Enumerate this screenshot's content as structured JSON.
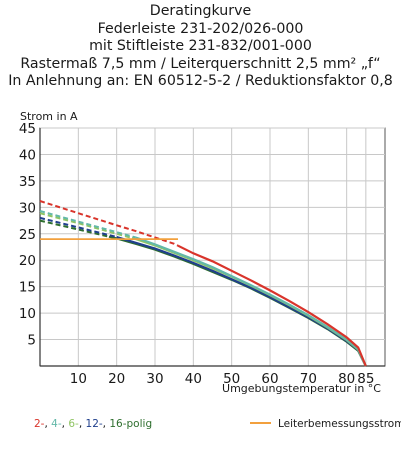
{
  "title_lines": [
    "Deratingkurve",
    "Federleiste 231-202/026-000",
    "mit Stiftleiste 231-832/001-000",
    "Rastermaß 7,5 mm / Leiterquerschnitt 2,5 mm² „f“",
    "In Anlehnung an: EN 60512-5-2 / Reduktionsfaktor 0,8"
  ],
  "legend": {
    "poles": [
      {
        "text": "2-",
        "color": "#d9342b"
      },
      {
        "text": ", ",
        "color": "#1a1a1a"
      },
      {
        "text": "4-",
        "color": "#63b8a8"
      },
      {
        "text": ", ",
        "color": "#1a1a1a"
      },
      {
        "text": "6-",
        "color": "#8fc463"
      },
      {
        "text": ", ",
        "color": "#1a1a1a"
      },
      {
        "text": "12-",
        "color": "#1f3f8c"
      },
      {
        "text": ", ",
        "color": "#1a1a1a"
      },
      {
        "text": "16-",
        "color": "#2e6e2e"
      },
      {
        "text": "polig",
        "color": "#2e6e2e"
      }
    ],
    "rated_current_label": "Leiterbemessungsstrom",
    "rated_current_color": "#f2a03d"
  },
  "chart_data": {
    "type": "line",
    "ylabel": "Strom in A",
    "xlabel": "Umgebungstemperatur in °C",
    "xlim": [
      0,
      90
    ],
    "ylim": [
      0,
      45
    ],
    "x_ticks": [
      10,
      20,
      30,
      40,
      50,
      60,
      70,
      80,
      85
    ],
    "y_ticks": [
      5,
      10,
      15,
      20,
      25,
      30,
      35,
      40,
      45
    ],
    "grid": true,
    "series": [
      {
        "name": "2-polig",
        "color": "#d9342b",
        "x": [
          0,
          10,
          20,
          25,
          30,
          35,
          40,
          45,
          50,
          55,
          60,
          65,
          70,
          75,
          80,
          83,
          85
        ],
        "y": [
          31.2,
          28.9,
          26.6,
          25.5,
          24.3,
          23.1,
          21.3,
          19.8,
          18.0,
          16.2,
          14.3,
          12.3,
          10.2,
          7.9,
          5.4,
          3.5,
          0
        ],
        "dashed_until_x": 36
      },
      {
        "name": "4-polig",
        "color": "#63b8a8",
        "x": [
          0,
          10,
          20,
          25,
          30,
          35,
          40,
          45,
          50,
          55,
          60,
          65,
          70,
          75,
          80,
          83,
          85
        ],
        "y": [
          29.3,
          27.3,
          25.3,
          24.3,
          23.0,
          21.6,
          20.2,
          18.7,
          17.0,
          15.3,
          13.5,
          11.6,
          9.6,
          7.4,
          5.0,
          3.2,
          0
        ],
        "dashed_until_x": 25
      },
      {
        "name": "6-polig",
        "color": "#8fc463",
        "x": [
          0,
          10,
          20,
          25,
          30,
          35,
          40,
          45,
          50,
          55,
          60,
          65,
          70,
          75,
          80,
          83,
          85
        ],
        "y": [
          28.9,
          27.0,
          25.0,
          24.0,
          22.8,
          21.4,
          20.0,
          18.5,
          16.9,
          15.2,
          13.4,
          11.5,
          9.5,
          7.3,
          4.9,
          3.1,
          0
        ],
        "dashed_until_x": 24
      },
      {
        "name": "12-polig",
        "color": "#1f3f8c",
        "x": [
          0,
          10,
          20,
          25,
          30,
          35,
          40,
          45,
          50,
          55,
          60,
          65,
          70,
          75,
          80,
          83,
          85
        ],
        "y": [
          28.0,
          26.2,
          24.4,
          23.3,
          22.2,
          20.9,
          19.5,
          18.0,
          16.4,
          14.8,
          13.0,
          11.1,
          9.2,
          7.1,
          4.7,
          3.0,
          0
        ],
        "dashed_until_x": 20
      },
      {
        "name": "16-polig",
        "color": "#2e6e2e",
        "x": [
          0,
          10,
          20,
          25,
          30,
          35,
          40,
          45,
          50,
          55,
          60,
          65,
          70,
          75,
          80,
          83,
          85
        ],
        "y": [
          27.5,
          25.8,
          24.1,
          23.1,
          22.0,
          20.7,
          19.3,
          17.8,
          16.3,
          14.7,
          12.9,
          11.0,
          9.1,
          7.0,
          4.6,
          2.9,
          0
        ],
        "dashed_until_x": 18
      },
      {
        "name": "Leiterbemessungsstrom",
        "color": "#f2a03d",
        "x": [
          0,
          36
        ],
        "y": [
          24,
          24
        ]
      }
    ]
  }
}
